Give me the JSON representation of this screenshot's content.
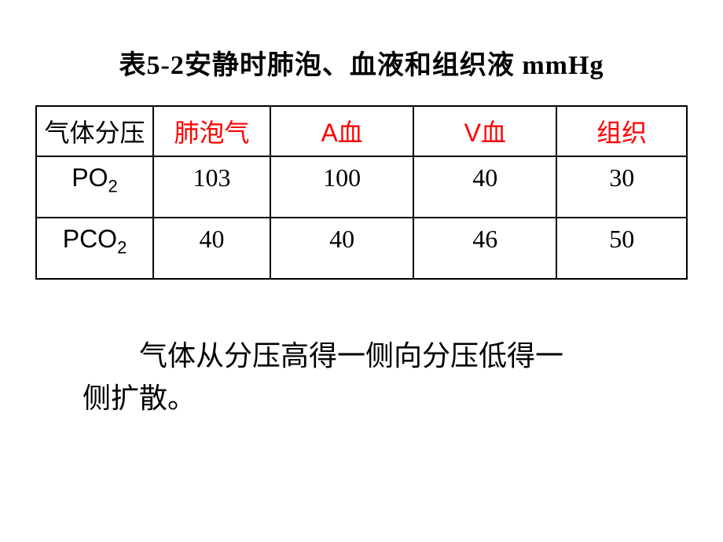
{
  "title": "表5-2安静时肺泡、血液和组织液 mmHg",
  "table": {
    "headers": {
      "col1": "气体分压",
      "col2": "肺泡气",
      "col3_prefix": "A",
      "col3_suffix": "血",
      "col4_prefix": "V",
      "col4_suffix": "血",
      "col5": "组织"
    },
    "rows": [
      {
        "label_prefix": "PO",
        "label_sub": "2",
        "v1": "103",
        "v2": "100",
        "v3": "40",
        "v4": "30"
      },
      {
        "label_prefix": "PCO",
        "label_sub": "2",
        "v1": "40",
        "v2": "40",
        "v3": "46",
        "v4": "50"
      }
    ]
  },
  "body_text_line1": "气体从分压高得一侧向分压低得一",
  "body_text_line2": "侧扩散。",
  "colors": {
    "header_red": "#ff0000",
    "text_black": "#000000",
    "border": "#000000",
    "background": "#ffffff"
  }
}
